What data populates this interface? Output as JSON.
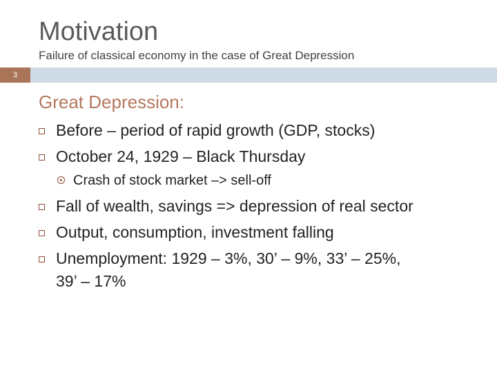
{
  "slide": {
    "title": "Motivation",
    "subtitle": "Failure of classical economy in the case of Great Depression",
    "number": "3",
    "heading": "Great Depression:",
    "bullets": [
      "Before – period of rapid growth (GDP, stocks)",
      "October 24, 1929 – Black Thursday",
      "Crash of stock market –> sell-off",
      "Fall of wealth, savings => depression of real sector",
      "Output, consumption, investment falling",
      "Unemployment: 1929 – 3%, 30’ – 9%, 33’ – 25%,",
      "39’ – 17%"
    ]
  },
  "colors": {
    "band": "#cfdbe6",
    "number_box": "#aa7458",
    "heading": "#b5785e",
    "bullet": "#8a4a35"
  },
  "icons": {
    "level1_bullet": "hollow-square-icon",
    "level2_bullet": "circle-dot-icon"
  }
}
